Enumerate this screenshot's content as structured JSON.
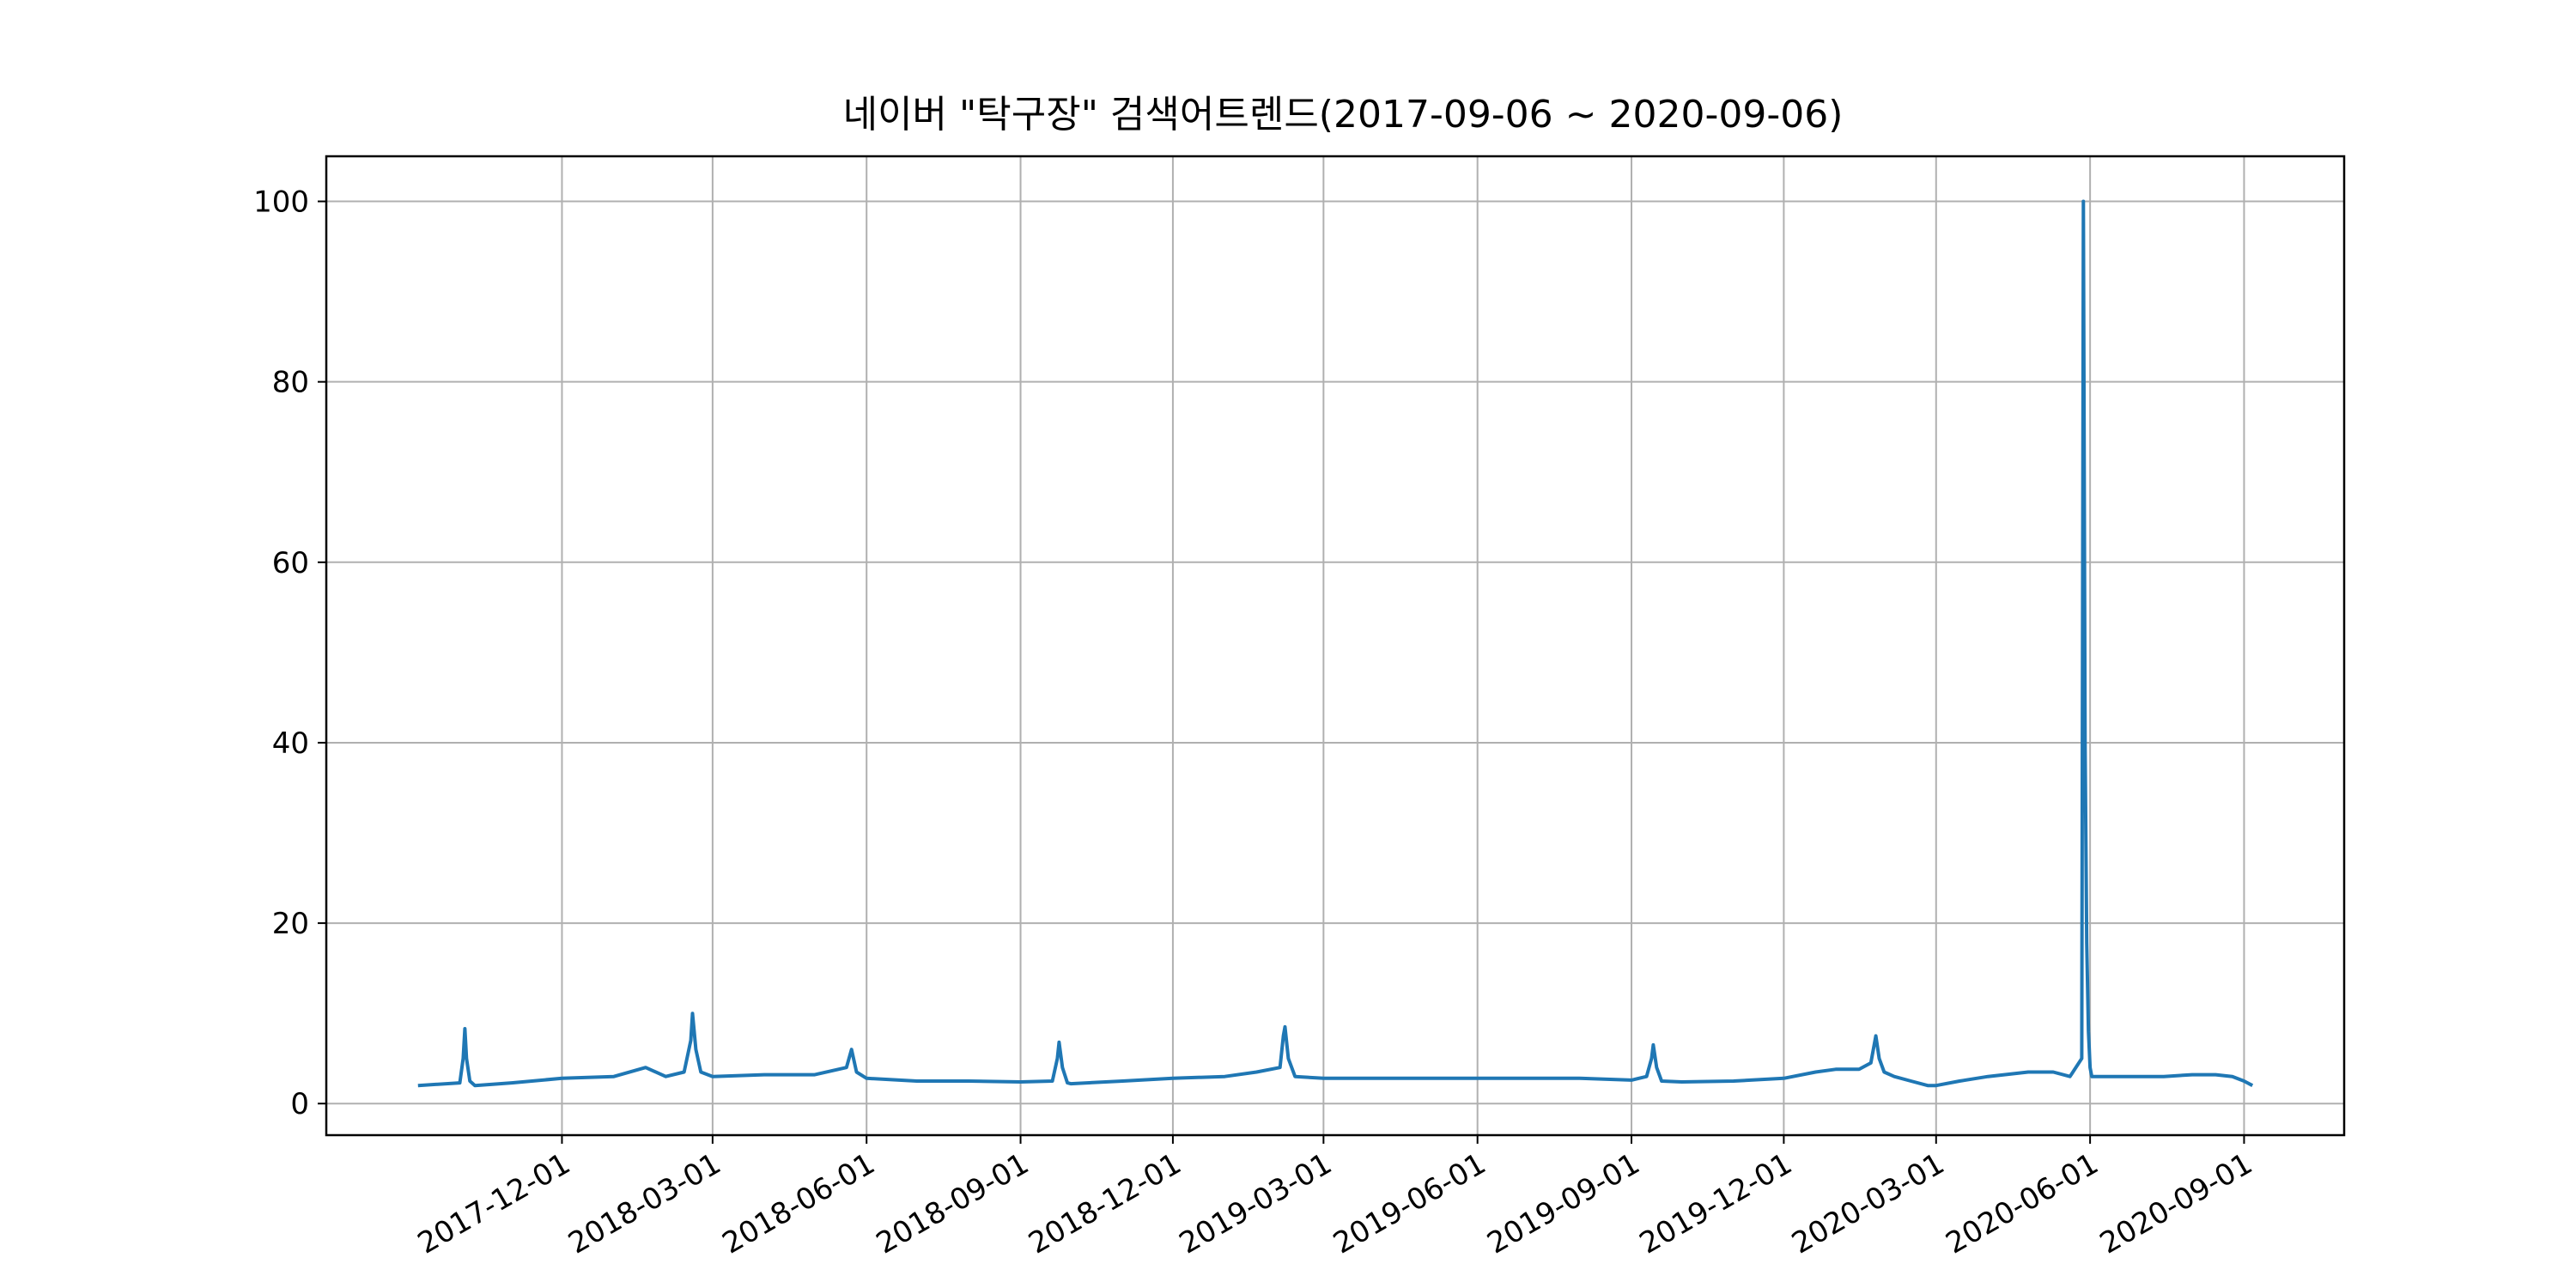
{
  "chart_data": {
    "type": "line",
    "title": "네이버 \"탁구장\" 검색어트렌드(2017-09-06 ~ 2020-09-06)",
    "xlabel": "",
    "ylabel": "",
    "x_range": [
      "2017-09-06",
      "2020-09-06"
    ],
    "ylim": [
      -3.5,
      105
    ],
    "grid": true,
    "line_color": "#1f77b4",
    "x_ticks": [
      "2017-12-01",
      "2018-03-01",
      "2018-06-01",
      "2018-09-01",
      "2018-12-01",
      "2019-03-01",
      "2019-06-01",
      "2019-09-01",
      "2019-12-01",
      "2020-03-01",
      "2020-06-01",
      "2020-09-01"
    ],
    "y_ticks": [
      0,
      20,
      40,
      60,
      80,
      100
    ],
    "series": [
      {
        "name": "",
        "x": [
          "2017-09-06",
          "2017-10-01",
          "2017-10-03",
          "2017-10-04",
          "2017-10-05",
          "2017-10-07",
          "2017-10-10",
          "2017-11-01",
          "2017-12-01",
          "2018-01-01",
          "2018-01-20",
          "2018-02-01",
          "2018-02-12",
          "2018-02-16",
          "2018-02-17",
          "2018-02-19",
          "2018-02-22",
          "2018-03-01",
          "2018-04-01",
          "2018-05-01",
          "2018-05-20",
          "2018-05-23",
          "2018-05-26",
          "2018-06-01",
          "2018-07-01",
          "2018-08-01",
          "2018-09-01",
          "2018-09-20",
          "2018-09-23",
          "2018-09-24",
          "2018-09-26",
          "2018-09-29",
          "2018-10-01",
          "2018-11-01",
          "2018-12-01",
          "2019-01-01",
          "2019-01-20",
          "2019-02-03",
          "2019-02-05",
          "2019-02-06",
          "2019-02-08",
          "2019-02-12",
          "2019-03-01",
          "2019-04-01",
          "2019-05-01",
          "2019-06-01",
          "2019-07-01",
          "2019-08-01",
          "2019-09-01",
          "2019-09-10",
          "2019-09-13",
          "2019-09-14",
          "2019-09-16",
          "2019-09-19",
          "2019-10-01",
          "2019-11-01",
          "2019-12-01",
          "2019-12-20",
          "2020-01-01",
          "2020-01-15",
          "2020-01-22",
          "2020-01-25",
          "2020-01-27",
          "2020-01-30",
          "2020-02-05",
          "2020-02-15",
          "2020-02-25",
          "2020-03-01",
          "2020-03-15",
          "2020-04-01",
          "2020-04-25",
          "2020-05-01",
          "2020-05-10",
          "2020-05-20",
          "2020-05-27",
          "2020-05-28",
          "2020-05-29",
          "2020-05-30",
          "2020-05-31",
          "2020-06-01",
          "2020-06-02",
          "2020-06-05",
          "2020-06-10",
          "2020-06-20",
          "2020-07-01",
          "2020-07-15",
          "2020-08-01",
          "2020-08-15",
          "2020-08-25",
          "2020-09-01",
          "2020-09-06"
        ],
        "y": [
          2,
          2.3,
          5,
          8.3,
          5,
          2.5,
          2,
          2.3,
          2.8,
          3,
          4,
          3,
          3.5,
          7,
          10,
          6,
          3.5,
          3,
          3.2,
          3.2,
          4,
          6,
          3.5,
          2.8,
          2.5,
          2.5,
          2.4,
          2.5,
          5,
          6.8,
          4,
          2.3,
          2.2,
          2.5,
          2.8,
          3,
          3.5,
          4,
          7.5,
          8.5,
          5,
          3,
          2.8,
          2.8,
          2.8,
          2.8,
          2.8,
          2.8,
          2.6,
          3,
          5,
          6.5,
          4,
          2.5,
          2.4,
          2.5,
          2.8,
          3.5,
          3.8,
          3.8,
          4.5,
          7.5,
          5,
          3.5,
          3,
          2.5,
          2,
          2,
          2.5,
          3,
          3.5,
          3.5,
          3.5,
          3,
          5,
          100,
          40,
          17.8,
          8,
          4,
          3,
          3,
          3,
          3,
          3,
          3,
          3.2,
          3.2,
          3,
          2.5,
          2
        ]
      }
    ]
  }
}
